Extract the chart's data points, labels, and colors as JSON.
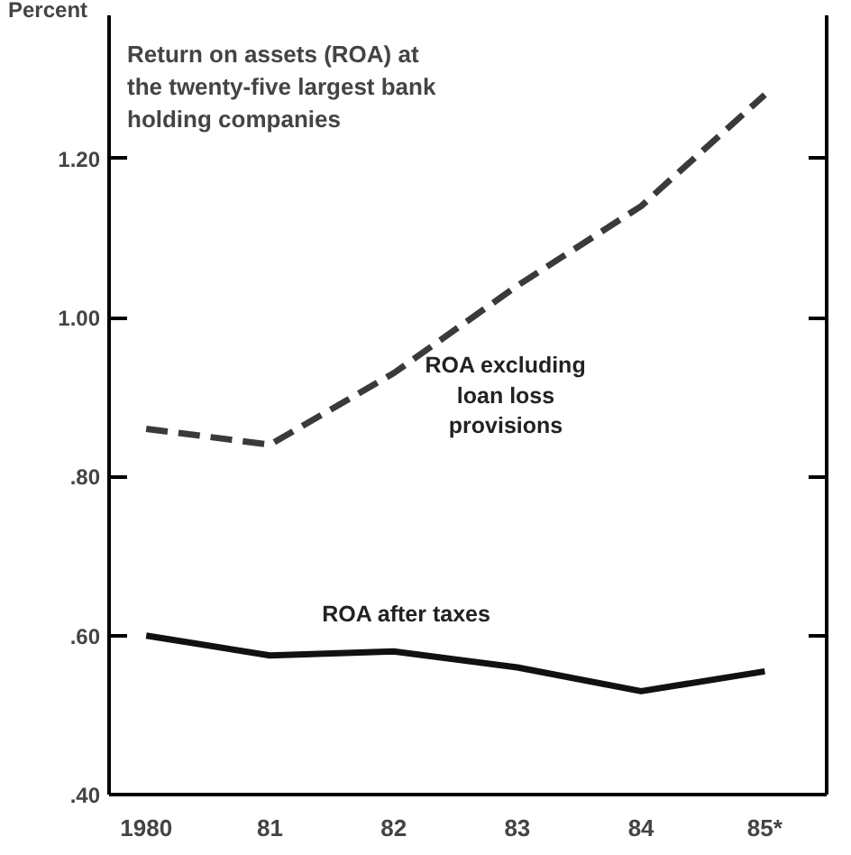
{
  "chart_data": {
    "type": "line",
    "title": "Return on assets (ROA) at\nthe twenty-five largest bank\nholding companies",
    "ylabel": "Percent",
    "categories": [
      "1980",
      "81",
      "82",
      "83",
      "84",
      "85*"
    ],
    "series": [
      {
        "color": "#3a3a3a",
        "values": [
          0.86,
          0.84,
          0.93,
          1.04,
          1.14,
          1.28
        ],
        "line_style": "dashed"
      },
      {
        "color": "#111111",
        "values": [
          0.6,
          0.575,
          0.58,
          0.56,
          0.53,
          0.555
        ],
        "line_style": "solid"
      }
    ],
    "annotations": [
      "ROA excluding\nloan loss\nprovisions",
      "ROA after taxes"
    ],
    "ylim": [
      0.4,
      1.38
    ],
    "yticks": [
      {
        "value": 0.4,
        "label": ".40"
      },
      {
        "value": 0.6,
        "label": ".60"
      },
      {
        "value": 0.8,
        "label": ".80"
      },
      {
        "value": 1.0,
        "label": "1.00"
      },
      {
        "value": 1.2,
        "label": "1.20"
      }
    ],
    "grid": false,
    "marker": "none"
  }
}
